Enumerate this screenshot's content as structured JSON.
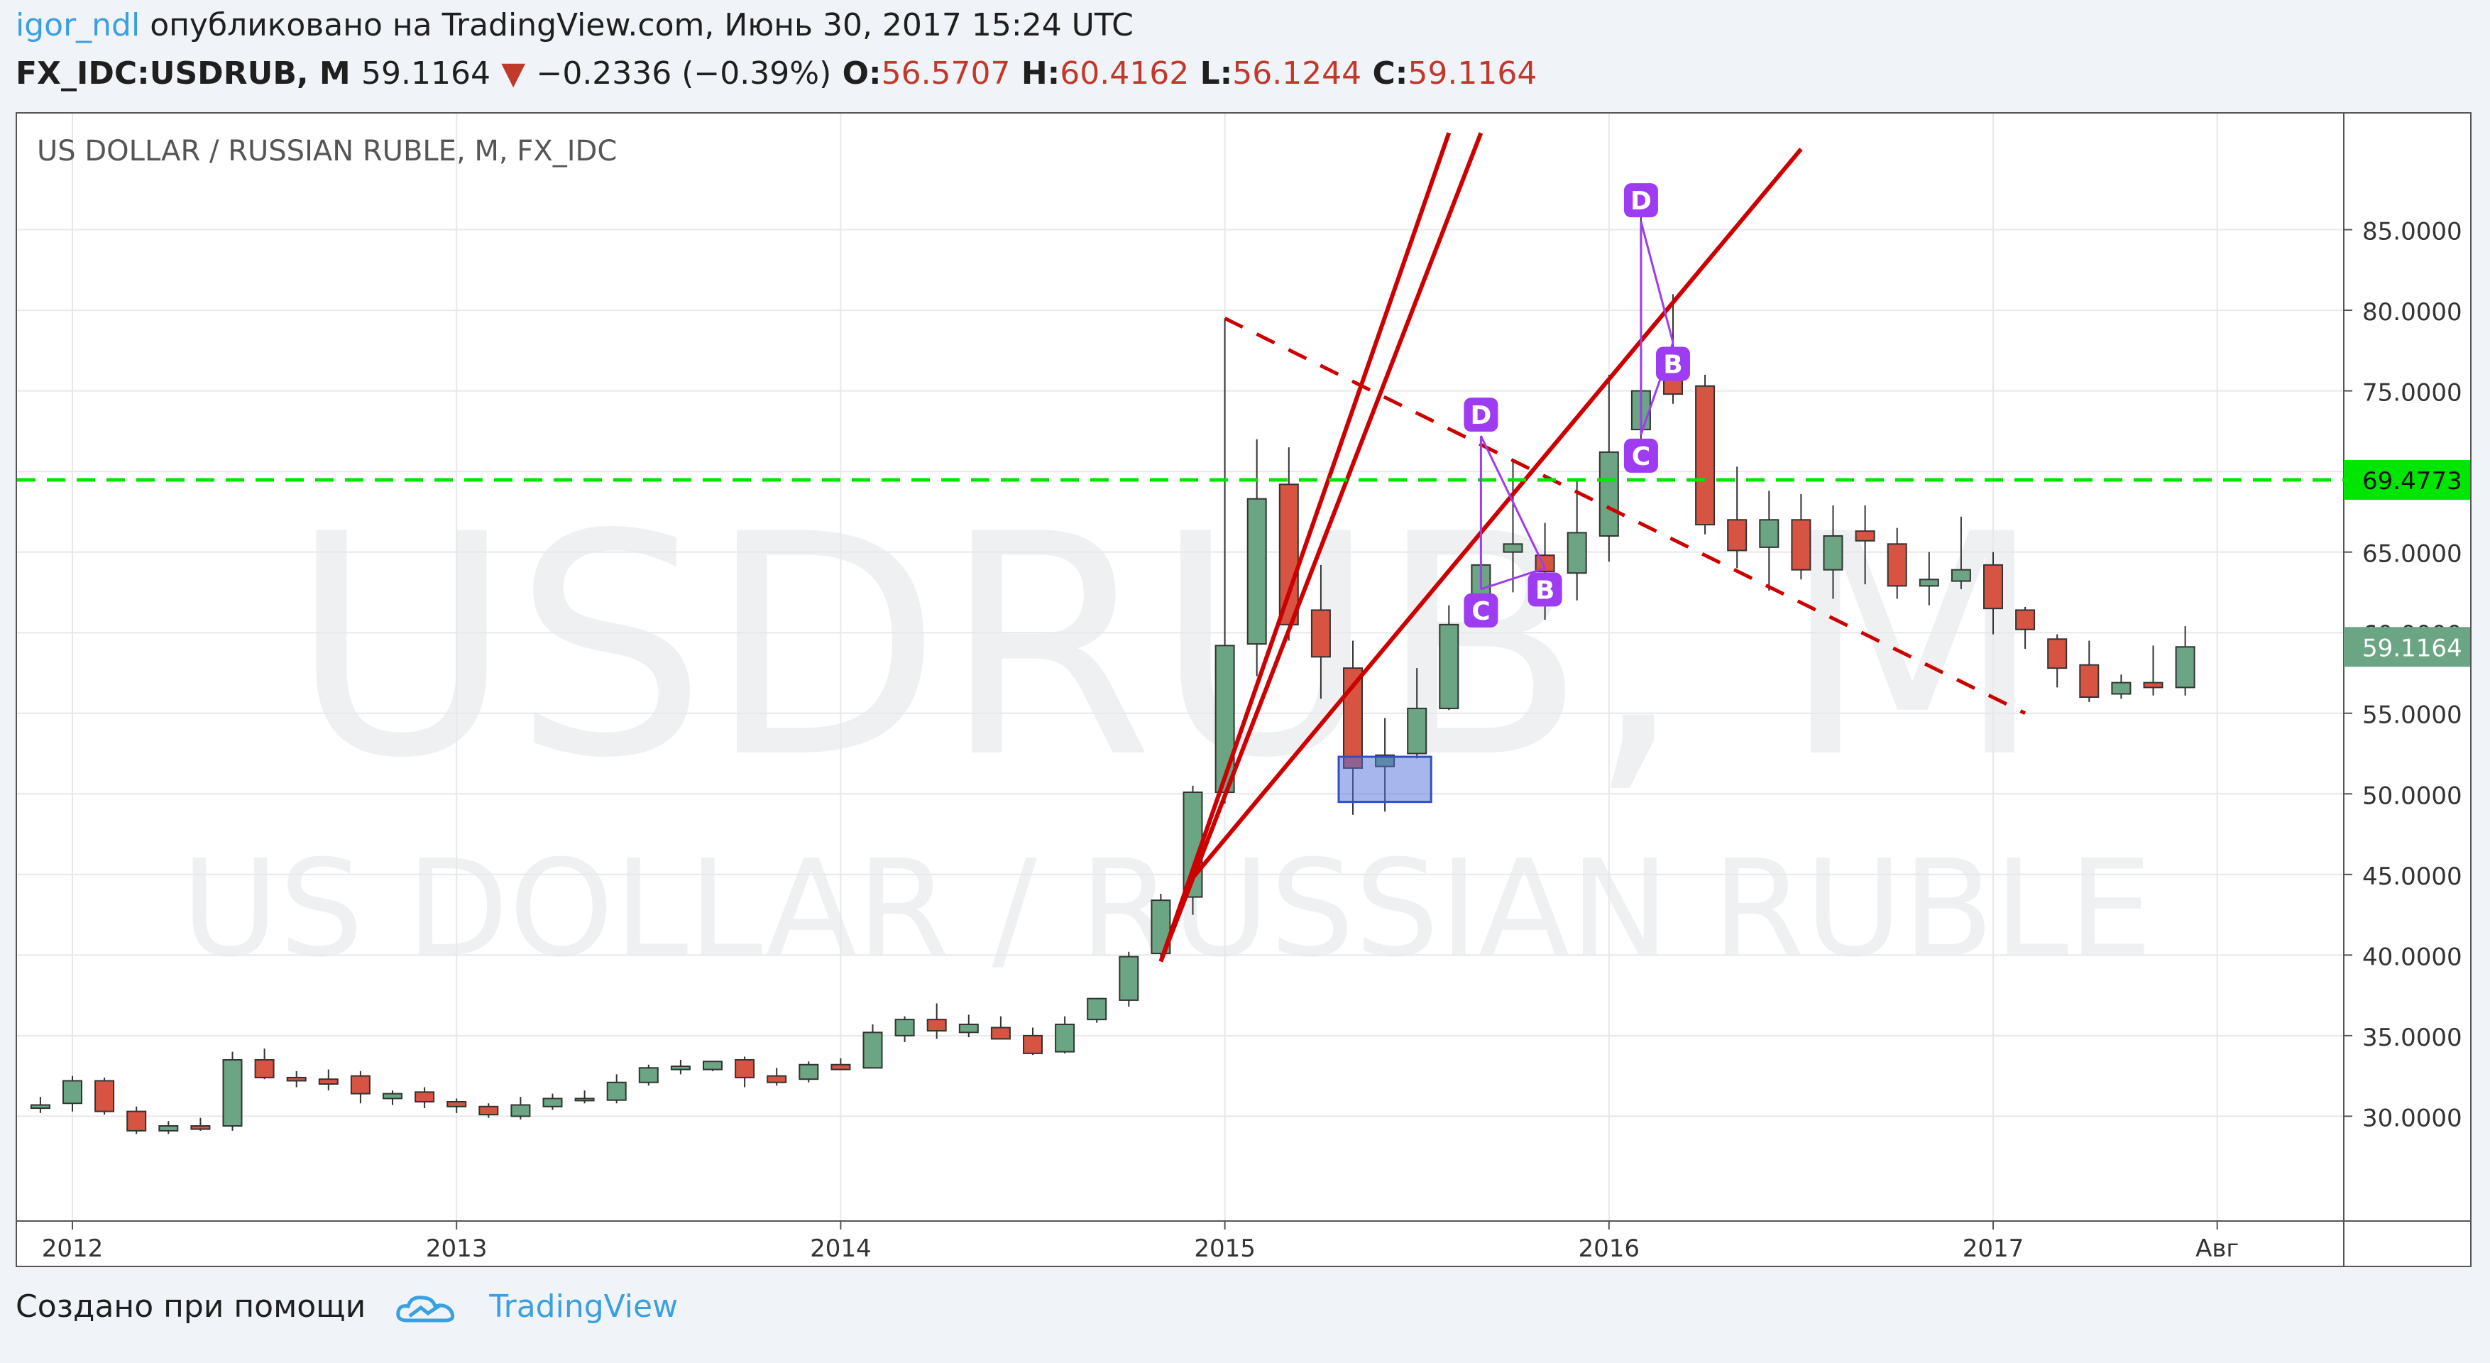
{
  "header": {
    "author": "igor_ndl",
    "published_text": "опубликовано на TradingView.com, Июнь 30, 2017 15:24 UTC",
    "symbol": "FX_IDC:USDRUB, M",
    "last": "59.1164",
    "change": "−0.2336 (−0.39%)",
    "o_label": "O:",
    "o": "56.5707",
    "h_label": "H:",
    "h": "60.4162",
    "l_label": "L:",
    "l": "56.1244",
    "c_label": "C:",
    "c": "59.1164"
  },
  "footer": {
    "made_with": "Создано при помощи",
    "brand": "TradingView"
  },
  "colors": {
    "up": "#6ba583",
    "down": "#d75442",
    "green_line": "#00e600",
    "pattern": "#9d3cf0",
    "trend": "#cc0000",
    "author": "#3ba0e0"
  },
  "chart_data": {
    "type": "candlestick",
    "title": "US DOLLAR / RUSSIAN RUBLE, M, FX_IDC",
    "watermark_symbol": "USDRUB, M",
    "watermark_name": "US DOLLAR / RUSSIAN RUBLE",
    "ylim": [
      23.5,
      90
    ],
    "y_ticks": [
      "30.0000",
      "35.0000",
      "40.0000",
      "45.0000",
      "50.0000",
      "55.0000",
      "60.0000",
      "65.0000",
      "70.0000",
      "75.0000",
      "80.0000",
      "85.0000"
    ],
    "x_ticks": [
      {
        "label": "2012",
        "t": "2012-01"
      },
      {
        "label": "2013",
        "t": "2013-01"
      },
      {
        "label": "2014",
        "t": "2014-01"
      },
      {
        "label": "2015",
        "t": "2015-01"
      },
      {
        "label": "2016",
        "t": "2016-01"
      },
      {
        "label": "2017",
        "t": "2017-01"
      },
      {
        "label": "Авг",
        "t": "2017-08"
      }
    ],
    "hline": {
      "value": 69.4773,
      "label": "69.4773"
    },
    "last_price": {
      "value": 59.1164,
      "label": "59.1164"
    },
    "ohlc": [
      {
        "t": "2011-12",
        "o": 30.5,
        "h": 31.2,
        "l": 30.2,
        "c": 30.7
      },
      {
        "t": "2012-01",
        "o": 30.8,
        "h": 32.5,
        "l": 30.3,
        "c": 32.2
      },
      {
        "t": "2012-02",
        "o": 32.2,
        "h": 32.4,
        "l": 30.1,
        "c": 30.3
      },
      {
        "t": "2012-03",
        "o": 30.3,
        "h": 30.6,
        "l": 28.9,
        "c": 29.1
      },
      {
        "t": "2012-04",
        "o": 29.1,
        "h": 29.7,
        "l": 28.9,
        "c": 29.4
      },
      {
        "t": "2012-05",
        "o": 29.4,
        "h": 29.9,
        "l": 29.1,
        "c": 29.2
      },
      {
        "t": "2012-06",
        "o": 29.4,
        "h": 34.0,
        "l": 29.1,
        "c": 33.5
      },
      {
        "t": "2012-07",
        "o": 33.5,
        "h": 34.2,
        "l": 32.3,
        "c": 32.4
      },
      {
        "t": "2012-08",
        "o": 32.4,
        "h": 32.8,
        "l": 31.8,
        "c": 32.2
      },
      {
        "t": "2012-09",
        "o": 32.3,
        "h": 32.9,
        "l": 31.6,
        "c": 32.0
      },
      {
        "t": "2012-10",
        "o": 32.5,
        "h": 32.8,
        "l": 30.8,
        "c": 31.4
      },
      {
        "t": "2012-11",
        "o": 31.1,
        "h": 31.6,
        "l": 30.7,
        "c": 31.4
      },
      {
        "t": "2012-12",
        "o": 31.5,
        "h": 31.8,
        "l": 30.5,
        "c": 30.9
      },
      {
        "t": "2013-01",
        "o": 30.9,
        "h": 31.1,
        "l": 30.2,
        "c": 30.6
      },
      {
        "t": "2013-02",
        "o": 30.6,
        "h": 30.8,
        "l": 29.9,
        "c": 30.1
      },
      {
        "t": "2013-03",
        "o": 30.0,
        "h": 31.2,
        "l": 29.8,
        "c": 30.7
      },
      {
        "t": "2013-04",
        "o": 30.6,
        "h": 31.4,
        "l": 30.4,
        "c": 31.1
      },
      {
        "t": "2013-05",
        "o": 31.0,
        "h": 31.6,
        "l": 30.8,
        "c": 31.1
      },
      {
        "t": "2013-06",
        "o": 31.0,
        "h": 32.6,
        "l": 30.8,
        "c": 32.1
      },
      {
        "t": "2013-07",
        "o": 32.1,
        "h": 33.2,
        "l": 31.9,
        "c": 33.0
      },
      {
        "t": "2013-08",
        "o": 32.9,
        "h": 33.5,
        "l": 32.6,
        "c": 33.1
      },
      {
        "t": "2013-09",
        "o": 32.9,
        "h": 33.4,
        "l": 32.8,
        "c": 33.4
      },
      {
        "t": "2013-10",
        "o": 33.5,
        "h": 33.7,
        "l": 31.8,
        "c": 32.4
      },
      {
        "t": "2013-11",
        "o": 32.5,
        "h": 33.0,
        "l": 31.9,
        "c": 32.1
      },
      {
        "t": "2013-12",
        "o": 32.3,
        "h": 33.4,
        "l": 32.1,
        "c": 33.2
      },
      {
        "t": "2014-01",
        "o": 33.2,
        "h": 33.6,
        "l": 32.9,
        "c": 32.9
      },
      {
        "t": "2014-02",
        "o": 33.0,
        "h": 35.7,
        "l": 33.0,
        "c": 35.2
      },
      {
        "t": "2014-03",
        "o": 35.0,
        "h": 36.2,
        "l": 34.6,
        "c": 36.0
      },
      {
        "t": "2014-04",
        "o": 36.0,
        "h": 37.0,
        "l": 34.8,
        "c": 35.3
      },
      {
        "t": "2014-05",
        "o": 35.2,
        "h": 36.3,
        "l": 34.9,
        "c": 35.7
      },
      {
        "t": "2014-06",
        "o": 35.5,
        "h": 36.2,
        "l": 34.9,
        "c": 34.8
      },
      {
        "t": "2014-07",
        "o": 35.0,
        "h": 35.5,
        "l": 33.8,
        "c": 33.9
      },
      {
        "t": "2014-08",
        "o": 34.0,
        "h": 36.2,
        "l": 33.9,
        "c": 35.7
      },
      {
        "t": "2014-09",
        "o": 36.0,
        "h": 37.3,
        "l": 35.8,
        "c": 37.3
      },
      {
        "t": "2014-10",
        "o": 37.2,
        "h": 40.2,
        "l": 36.8,
        "c": 39.9
      },
      {
        "t": "2014-11",
        "o": 40.1,
        "h": 43.8,
        "l": 39.9,
        "c": 43.4
      },
      {
        "t": "2014-12",
        "o": 43.6,
        "h": 50.5,
        "l": 42.5,
        "c": 50.1
      },
      {
        "t": "2015-01",
        "o": 50.1,
        "h": 79.5,
        "l": 49.4,
        "c": 59.2
      },
      {
        "t": "2015-02",
        "o": 59.3,
        "h": 72.0,
        "l": 57.3,
        "c": 68.3
      },
      {
        "t": "2015-03",
        "o": 69.2,
        "h": 71.5,
        "l": 59.5,
        "c": 60.5
      },
      {
        "t": "2015-04",
        "o": 61.4,
        "h": 64.2,
        "l": 55.9,
        "c": 58.5
      },
      {
        "t": "2015-05",
        "o": 57.8,
        "h": 59.5,
        "l": 48.7,
        "c": 51.6
      },
      {
        "t": "2015-06",
        "o": 51.7,
        "h": 54.7,
        "l": 48.9,
        "c": 52.4
      },
      {
        "t": "2015-07",
        "o": 52.5,
        "h": 57.8,
        "l": 52.2,
        "c": 55.3
      },
      {
        "t": "2015-08",
        "o": 55.3,
        "h": 61.7,
        "l": 55.2,
        "c": 60.5
      },
      {
        "t": "2015-09",
        "o": 60.6,
        "h": 72.2,
        "l": 60.5,
        "c": 64.2
      },
      {
        "t": "2015-10",
        "o": 65.0,
        "h": 70.8,
        "l": 62.5,
        "c": 65.5
      },
      {
        "t": "2015-11",
        "o": 64.8,
        "h": 66.8,
        "l": 60.8,
        "c": 63.8
      },
      {
        "t": "2015-12",
        "o": 63.7,
        "h": 69.5,
        "l": 62.0,
        "c": 66.2
      },
      {
        "t": "2016-01",
        "o": 66.0,
        "h": 76.0,
        "l": 64.4,
        "c": 71.2
      },
      {
        "t": "2016-02",
        "o": 72.6,
        "h": 85.9,
        "l": 70.0,
        "c": 75.0
      },
      {
        "t": "2016-03",
        "o": 76.6,
        "h": 81.0,
        "l": 74.2,
        "c": 74.8
      },
      {
        "t": "2016-04",
        "o": 75.3,
        "h": 76.0,
        "l": 66.1,
        "c": 66.7
      },
      {
        "t": "2016-05",
        "o": 67.0,
        "h": 70.3,
        "l": 64.0,
        "c": 65.1
      },
      {
        "t": "2016-06",
        "o": 65.3,
        "h": 68.8,
        "l": 62.6,
        "c": 67.0
      },
      {
        "t": "2016-07",
        "o": 67.0,
        "h": 68.6,
        "l": 63.3,
        "c": 63.9
      },
      {
        "t": "2016-08",
        "o": 63.9,
        "h": 67.9,
        "l": 62.1,
        "c": 66.0
      },
      {
        "t": "2016-09",
        "o": 66.3,
        "h": 67.9,
        "l": 63.0,
        "c": 65.7
      },
      {
        "t": "2016-10",
        "o": 65.5,
        "h": 66.5,
        "l": 62.1,
        "c": 62.9
      },
      {
        "t": "2016-11",
        "o": 62.9,
        "h": 65.0,
        "l": 61.7,
        "c": 63.3
      },
      {
        "t": "2016-12",
        "o": 63.2,
        "h": 67.2,
        "l": 62.7,
        "c": 63.9
      },
      {
        "t": "2017-01",
        "o": 64.2,
        "h": 65.0,
        "l": 59.9,
        "c": 61.5
      },
      {
        "t": "2017-02",
        "o": 61.4,
        "h": 61.6,
        "l": 59.0,
        "c": 60.2
      },
      {
        "t": "2017-03",
        "o": 59.6,
        "h": 59.9,
        "l": 56.6,
        "c": 57.8
      },
      {
        "t": "2017-04",
        "o": 58.0,
        "h": 59.5,
        "l": 55.7,
        "c": 56.0
      },
      {
        "t": "2017-05",
        "o": 56.2,
        "h": 57.4,
        "l": 55.9,
        "c": 56.9
      },
      {
        "t": "2017-06",
        "o": 56.9,
        "h": 59.2,
        "l": 56.1,
        "c": 56.6
      },
      {
        "t": "2017-07",
        "o": 56.6,
        "h": 60.4,
        "l": 56.1,
        "c": 59.1164
      }
    ],
    "trendlines": [
      {
        "style": "solid",
        "from": {
          "t": "2014-11",
          "v": 39.6
        },
        "to": {
          "t": "2015-08",
          "v": 91.0
        }
      },
      {
        "style": "solid",
        "from": {
          "t": "2014-11",
          "v": 39.6
        },
        "to": {
          "t": "2015-09",
          "v": 91.0
        }
      },
      {
        "style": "solid",
        "from": {
          "t": "2014-12",
          "v": 44.8
        },
        "to": {
          "t": "2016-07",
          "v": 90.0
        }
      },
      {
        "style": "dashed",
        "from": {
          "t": "2015-01",
          "v": 79.5
        },
        "to": {
          "t": "2017-02",
          "v": 55.0
        }
      }
    ],
    "patterns": [
      {
        "points": [
          {
            "label": "C",
            "t": "2015-09",
            "v": 62.7
          },
          {
            "label": "D",
            "t": "2015-09",
            "v": 72.2
          },
          {
            "label": "B",
            "t": "2015-11",
            "v": 64.0
          }
        ]
      },
      {
        "points": [
          {
            "label": "D",
            "t": "2016-02",
            "v": 85.5
          },
          {
            "label": "C",
            "t": "2016-02",
            "v": 72.3
          },
          {
            "label": "B",
            "t": "2016-03",
            "v": 78.0
          }
        ]
      }
    ],
    "box": {
      "t0": "2015-05",
      "t1": "2015-07",
      "v0": 49.5,
      "v1": 52.3
    }
  }
}
